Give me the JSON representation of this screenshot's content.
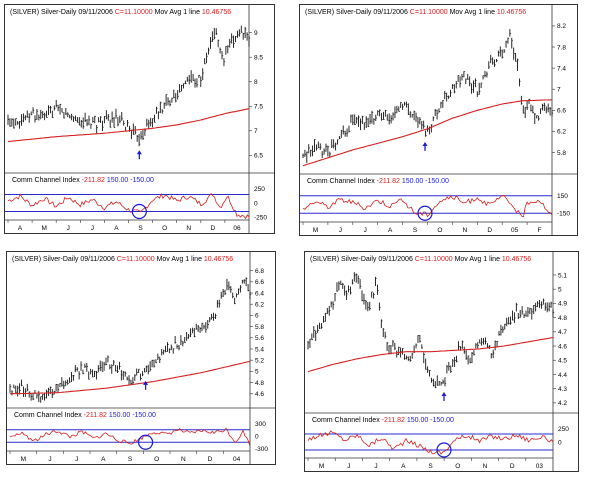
{
  "colors": {
    "frame": "#333333",
    "bars": "#111111",
    "moving_average": "#d42020",
    "cci_line": "#d42020",
    "cci_levels": "#2a2ad0",
    "highlight": "#1a1ad8",
    "value_red": "#d42020",
    "value_blue": "#1a1ad8"
  },
  "chart_data": [
    {
      "type": "line",
      "title": {
        "symbol": "(SILVER) Silver-Daily",
        "date": "09/11/2006",
        "close": "C=11.10000",
        "ma_label": "Mov Avg 1 line",
        "ma_value": "10.46756"
      },
      "price_scale": {
        "labels": [
          "6.5",
          "7",
          "7.5",
          "8",
          "8.5",
          "9"
        ],
        "min": 6.2,
        "max": 9.3
      },
      "x_axis": {
        "months": [
          "A",
          "M",
          "J",
          "J",
          "A",
          "S",
          "O",
          "N",
          "D",
          "06"
        ]
      },
      "indicator": {
        "title": "Comm Channel Index",
        "value": "-211.82",
        "upper": "150.00",
        "lower": "-150.00",
        "scale_labels": [
          "250",
          "0",
          "-250"
        ],
        "ylim": [
          -300,
          300
        ]
      },
      "price_path": [
        [
          0,
          7.2
        ],
        [
          0.06,
          7.25
        ],
        [
          0.1,
          7.35
        ],
        [
          0.15,
          7.25
        ],
        [
          0.2,
          7.45
        ],
        [
          0.25,
          7.3
        ],
        [
          0.3,
          7.2
        ],
        [
          0.36,
          7.15
        ],
        [
          0.4,
          7.2
        ],
        [
          0.45,
          7.25
        ],
        [
          0.5,
          7.05
        ],
        [
          0.54,
          6.85
        ],
        [
          0.58,
          7.1
        ],
        [
          0.63,
          7.4
        ],
        [
          0.68,
          7.7
        ],
        [
          0.72,
          7.85
        ],
        [
          0.76,
          8.1
        ],
        [
          0.8,
          8.05
        ],
        [
          0.83,
          8.6
        ],
        [
          0.86,
          9.1
        ],
        [
          0.89,
          8.4
        ],
        [
          0.92,
          8.7
        ],
        [
          0.96,
          9.05
        ],
        [
          1,
          8.85
        ]
      ],
      "ma_path": [
        [
          0,
          6.78
        ],
        [
          0.2,
          6.88
        ],
        [
          0.4,
          6.95
        ],
        [
          0.5,
          7.0
        ],
        [
          0.6,
          7.05
        ],
        [
          0.7,
          7.12
        ],
        [
          0.8,
          7.22
        ],
        [
          0.9,
          7.35
        ],
        [
          1,
          7.45
        ]
      ],
      "cci_path": [
        [
          0,
          40
        ],
        [
          0.05,
          120
        ],
        [
          0.1,
          -40
        ],
        [
          0.15,
          80
        ],
        [
          0.2,
          -60
        ],
        [
          0.25,
          100
        ],
        [
          0.3,
          -30
        ],
        [
          0.35,
          60
        ],
        [
          0.4,
          -80
        ],
        [
          0.45,
          20
        ],
        [
          0.5,
          -120
        ],
        [
          0.55,
          -180
        ],
        [
          0.6,
          60
        ],
        [
          0.65,
          140
        ],
        [
          0.7,
          40
        ],
        [
          0.75,
          120
        ],
        [
          0.8,
          -20
        ],
        [
          0.85,
          160
        ],
        [
          0.88,
          -80
        ],
        [
          0.91,
          130
        ],
        [
          0.95,
          -200
        ],
        [
          1,
          -240
        ]
      ],
      "arrow_at": 0.545,
      "circle_at": 0.545
    },
    {
      "type": "line",
      "title": {
        "symbol": "(SILVER) Silver-Daily",
        "date": "09/11/2006",
        "close": "C=11.10000",
        "ma_label": "Mov Avg 1 line",
        "ma_value": "10.46756"
      },
      "price_scale": {
        "labels": [
          "5.8",
          "6.2",
          "6.6",
          "7",
          "7.4",
          "7.8",
          "8.2"
        ],
        "min": 5.45,
        "max": 8.35
      },
      "x_axis": {
        "months": [
          "M",
          "J",
          "J",
          "A",
          "S",
          "O",
          "N",
          "D",
          "05",
          "F"
        ]
      },
      "indicator": {
        "title": "Comm Channel Index",
        "value": "-211.82",
        "upper": "150.00",
        "lower": "-150.00",
        "scale_labels": [
          "150",
          "-150"
        ],
        "ylim": [
          -300,
          300
        ]
      },
      "price_path": [
        [
          0,
          5.7
        ],
        [
          0.05,
          5.95
        ],
        [
          0.1,
          5.75
        ],
        [
          0.15,
          6.1
        ],
        [
          0.2,
          6.4
        ],
        [
          0.25,
          6.3
        ],
        [
          0.3,
          6.55
        ],
        [
          0.35,
          6.45
        ],
        [
          0.4,
          6.75
        ],
        [
          0.45,
          6.5
        ],
        [
          0.5,
          6.2
        ],
        [
          0.55,
          6.7
        ],
        [
          0.6,
          7.0
        ],
        [
          0.65,
          7.25
        ],
        [
          0.7,
          7.0
        ],
        [
          0.75,
          7.45
        ],
        [
          0.8,
          7.7
        ],
        [
          0.83,
          8.05
        ],
        [
          0.86,
          7.5
        ],
        [
          0.88,
          6.6
        ],
        [
          0.91,
          6.7
        ],
        [
          0.94,
          6.4
        ],
        [
          0.97,
          6.7
        ],
        [
          1,
          6.55
        ]
      ],
      "ma_path": [
        [
          0,
          5.55
        ],
        [
          0.2,
          5.85
        ],
        [
          0.4,
          6.1
        ],
        [
          0.5,
          6.25
        ],
        [
          0.6,
          6.45
        ],
        [
          0.7,
          6.6
        ],
        [
          0.8,
          6.72
        ],
        [
          0.88,
          6.78
        ],
        [
          1,
          6.8
        ]
      ],
      "cci_path": [
        [
          0,
          -80
        ],
        [
          0.05,
          60
        ],
        [
          0.1,
          -40
        ],
        [
          0.15,
          90
        ],
        [
          0.2,
          40
        ],
        [
          0.25,
          -60
        ],
        [
          0.3,
          80
        ],
        [
          0.35,
          -20
        ],
        [
          0.4,
          70
        ],
        [
          0.45,
          -140
        ],
        [
          0.5,
          -170
        ],
        [
          0.55,
          60
        ],
        [
          0.6,
          130
        ],
        [
          0.65,
          20
        ],
        [
          0.7,
          120
        ],
        [
          0.75,
          -20
        ],
        [
          0.8,
          140
        ],
        [
          0.85,
          -50
        ],
        [
          0.88,
          -250
        ],
        [
          0.9,
          40
        ],
        [
          0.95,
          80
        ],
        [
          1,
          -200
        ]
      ],
      "arrow_at": 0.49,
      "circle_at": 0.49
    },
    {
      "type": "line",
      "title": {
        "symbol": "(SILVER) Silver-Daily",
        "date": "09/11/2006",
        "close": "C=11.10000",
        "ma_label": "Mov Avg 1 line",
        "ma_value": "10.46756"
      },
      "price_scale": {
        "labels": [
          "4.6",
          "4.8",
          "5",
          "5.2",
          "5.4",
          "5.6",
          "5.8",
          "6",
          "6.2",
          "6.4",
          "6.6",
          "6.8"
        ],
        "min": 4.4,
        "max": 6.9
      },
      "x_axis": {
        "months": [
          "M",
          "J",
          "J",
          "A",
          "S",
          "O",
          "N",
          "D",
          "04"
        ]
      },
      "indicator": {
        "title": "Comm Channel Index",
        "value": "-211.82",
        "upper": "150.00",
        "lower": "-150.00",
        "scale_labels": [
          "300",
          "0",
          "-300"
        ],
        "ylim": [
          -360,
          360
        ]
      },
      "price_path": [
        [
          0,
          4.65
        ],
        [
          0.05,
          4.7
        ],
        [
          0.1,
          4.55
        ],
        [
          0.15,
          4.6
        ],
        [
          0.2,
          4.72
        ],
        [
          0.25,
          4.9
        ],
        [
          0.3,
          5.05
        ],
        [
          0.35,
          4.95
        ],
        [
          0.4,
          5.15
        ],
        [
          0.45,
          5.05
        ],
        [
          0.5,
          4.85
        ],
        [
          0.55,
          5.0
        ],
        [
          0.6,
          5.2
        ],
        [
          0.65,
          5.35
        ],
        [
          0.7,
          5.5
        ],
        [
          0.75,
          5.65
        ],
        [
          0.8,
          5.8
        ],
        [
          0.85,
          6.0
        ],
        [
          0.88,
          6.35
        ],
        [
          0.91,
          6.55
        ],
        [
          0.94,
          6.3
        ],
        [
          0.97,
          6.6
        ],
        [
          1,
          6.45
        ]
      ],
      "ma_path": [
        [
          0,
          4.6
        ],
        [
          0.2,
          4.62
        ],
        [
          0.4,
          4.7
        ],
        [
          0.5,
          4.76
        ],
        [
          0.6,
          4.82
        ],
        [
          0.7,
          4.9
        ],
        [
          0.8,
          4.98
        ],
        [
          0.9,
          5.08
        ],
        [
          1,
          5.18
        ]
      ],
      "cci_path": [
        [
          0,
          -60
        ],
        [
          0.05,
          80
        ],
        [
          0.1,
          -120
        ],
        [
          0.15,
          40
        ],
        [
          0.2,
          120
        ],
        [
          0.25,
          -20
        ],
        [
          0.3,
          100
        ],
        [
          0.35,
          -60
        ],
        [
          0.4,
          60
        ],
        [
          0.45,
          -100
        ],
        [
          0.5,
          -180
        ],
        [
          0.55,
          -40
        ],
        [
          0.6,
          100
        ],
        [
          0.65,
          40
        ],
        [
          0.7,
          150
        ],
        [
          0.75,
          60
        ],
        [
          0.8,
          130
        ],
        [
          0.85,
          80
        ],
        [
          0.9,
          160
        ],
        [
          0.94,
          -150
        ],
        [
          0.97,
          120
        ],
        [
          1,
          -210
        ]
      ],
      "arrow_at": 0.565,
      "circle_at": 0.565
    },
    {
      "type": "line",
      "title": {
        "symbol": "(SILVER) Silver-Daily",
        "date": "09/11/2006",
        "close": "C=11.10000",
        "ma_label": "Mov Avg 1 line",
        "ma_value": "10.46756"
      },
      "price_scale": {
        "labels": [
          "4.2",
          "4.3",
          "4.4",
          "4.5",
          "4.6",
          "4.7",
          "4.8",
          "4.9",
          "5",
          "5.1"
        ],
        "min": 4.15,
        "max": 5.17
      },
      "x_axis": {
        "months": [
          "M",
          "J",
          "J",
          "A",
          "S",
          "O",
          "N",
          "D",
          "03"
        ]
      },
      "indicator": {
        "title": "Comm Channel Index",
        "value": "-211.82",
        "upper": "150.00",
        "lower": "-150.00",
        "scale_labels": [
          "250",
          "0"
        ],
        "ylim": [
          -300,
          300
        ]
      },
      "price_path": [
        [
          0,
          4.6
        ],
        [
          0.05,
          4.75
        ],
        [
          0.1,
          4.9
        ],
        [
          0.13,
          5.05
        ],
        [
          0.16,
          4.95
        ],
        [
          0.2,
          5.1
        ],
        [
          0.24,
          4.85
        ],
        [
          0.28,
          5.05
        ],
        [
          0.3,
          4.75
        ],
        [
          0.33,
          4.6
        ],
        [
          0.38,
          4.55
        ],
        [
          0.42,
          4.5
        ],
        [
          0.45,
          4.65
        ],
        [
          0.5,
          4.4
        ],
        [
          0.54,
          4.32
        ],
        [
          0.58,
          4.45
        ],
        [
          0.62,
          4.6
        ],
        [
          0.66,
          4.5
        ],
        [
          0.7,
          4.65
        ],
        [
          0.75,
          4.55
        ],
        [
          0.8,
          4.75
        ],
        [
          0.85,
          4.85
        ],
        [
          0.9,
          4.8
        ],
        [
          0.95,
          4.92
        ],
        [
          1,
          4.85
        ]
      ],
      "ma_path": [
        [
          0,
          4.42
        ],
        [
          0.1,
          4.47
        ],
        [
          0.2,
          4.51
        ],
        [
          0.3,
          4.54
        ],
        [
          0.4,
          4.56
        ],
        [
          0.5,
          4.56
        ],
        [
          0.6,
          4.57
        ],
        [
          0.7,
          4.58
        ],
        [
          0.8,
          4.6
        ],
        [
          0.9,
          4.63
        ],
        [
          1,
          4.66
        ]
      ],
      "cci_path": [
        [
          0,
          60
        ],
        [
          0.05,
          120
        ],
        [
          0.1,
          180
        ],
        [
          0.15,
          40
        ],
        [
          0.2,
          130
        ],
        [
          0.25,
          -60
        ],
        [
          0.3,
          80
        ],
        [
          0.35,
          -120
        ],
        [
          0.4,
          20
        ],
        [
          0.45,
          -60
        ],
        [
          0.5,
          -180
        ],
        [
          0.55,
          -200
        ],
        [
          0.6,
          40
        ],
        [
          0.65,
          120
        ],
        [
          0.7,
          20
        ],
        [
          0.75,
          110
        ],
        [
          0.8,
          60
        ],
        [
          0.85,
          130
        ],
        [
          0.9,
          40
        ],
        [
          0.95,
          90
        ],
        [
          1,
          20
        ]
      ],
      "arrow_at": 0.555,
      "circle_at": 0.555
    }
  ]
}
